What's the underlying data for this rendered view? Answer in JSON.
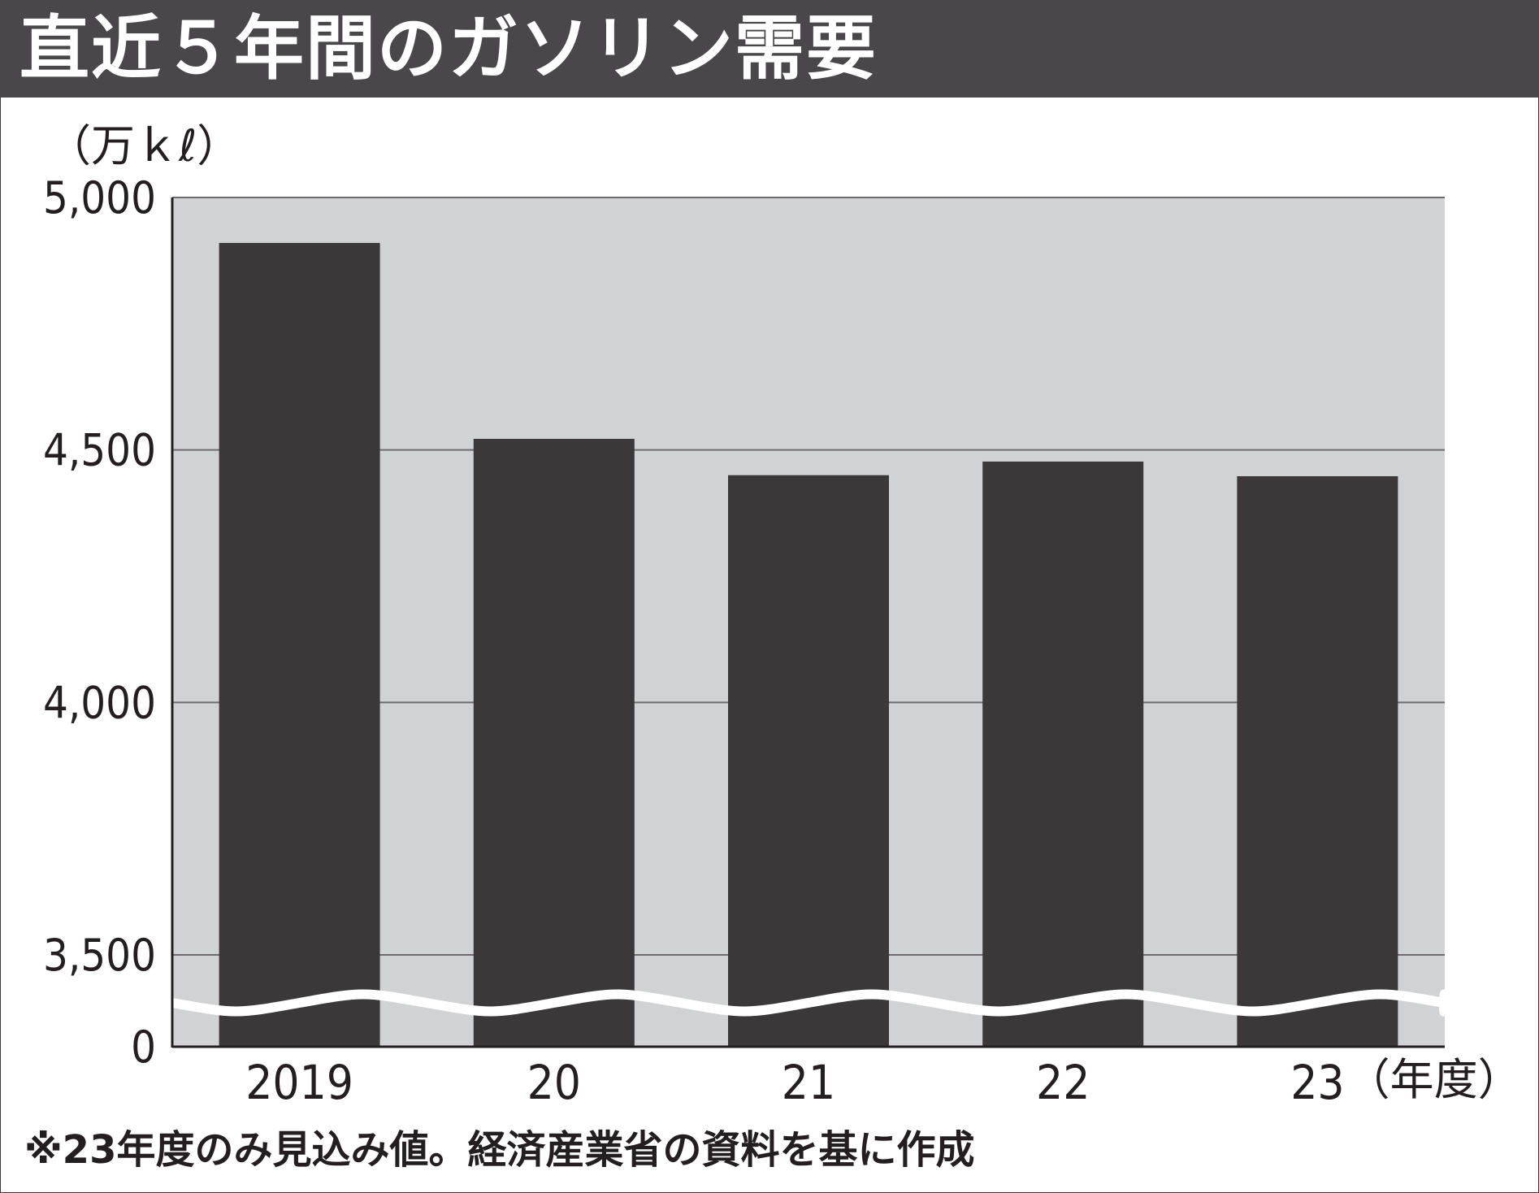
{
  "title": "直近５年間のガソリン需要",
  "colors": {
    "title_bg": "#4a474a",
    "plot_bg": "#d1d2d4",
    "bar": "#3b3839",
    "gridline": "#6d6b6e"
  },
  "chart_data": {
    "type": "bar",
    "title": "直近５年間のガソリン需要",
    "ylabel": "（万ｋℓ）",
    "xlabel": "（年度）",
    "categories": [
      "2019",
      "20",
      "21",
      "22",
      "23"
    ],
    "values": [
      4910,
      4522,
      4450,
      4477,
      4448
    ],
    "y_ticks": [
      {
        "value": 0,
        "label": "0"
      },
      {
        "value": 3500,
        "label": "3,500"
      },
      {
        "value": 4000,
        "label": "4,000"
      },
      {
        "value": 4500,
        "label": "4,500"
      },
      {
        "value": 5000,
        "label": "5,000"
      }
    ],
    "ylim": [
      3500,
      5000
    ],
    "axis_break": true,
    "grid": true
  },
  "note": "※23年度のみ見込み値。経済産業省の資料を基に作成"
}
